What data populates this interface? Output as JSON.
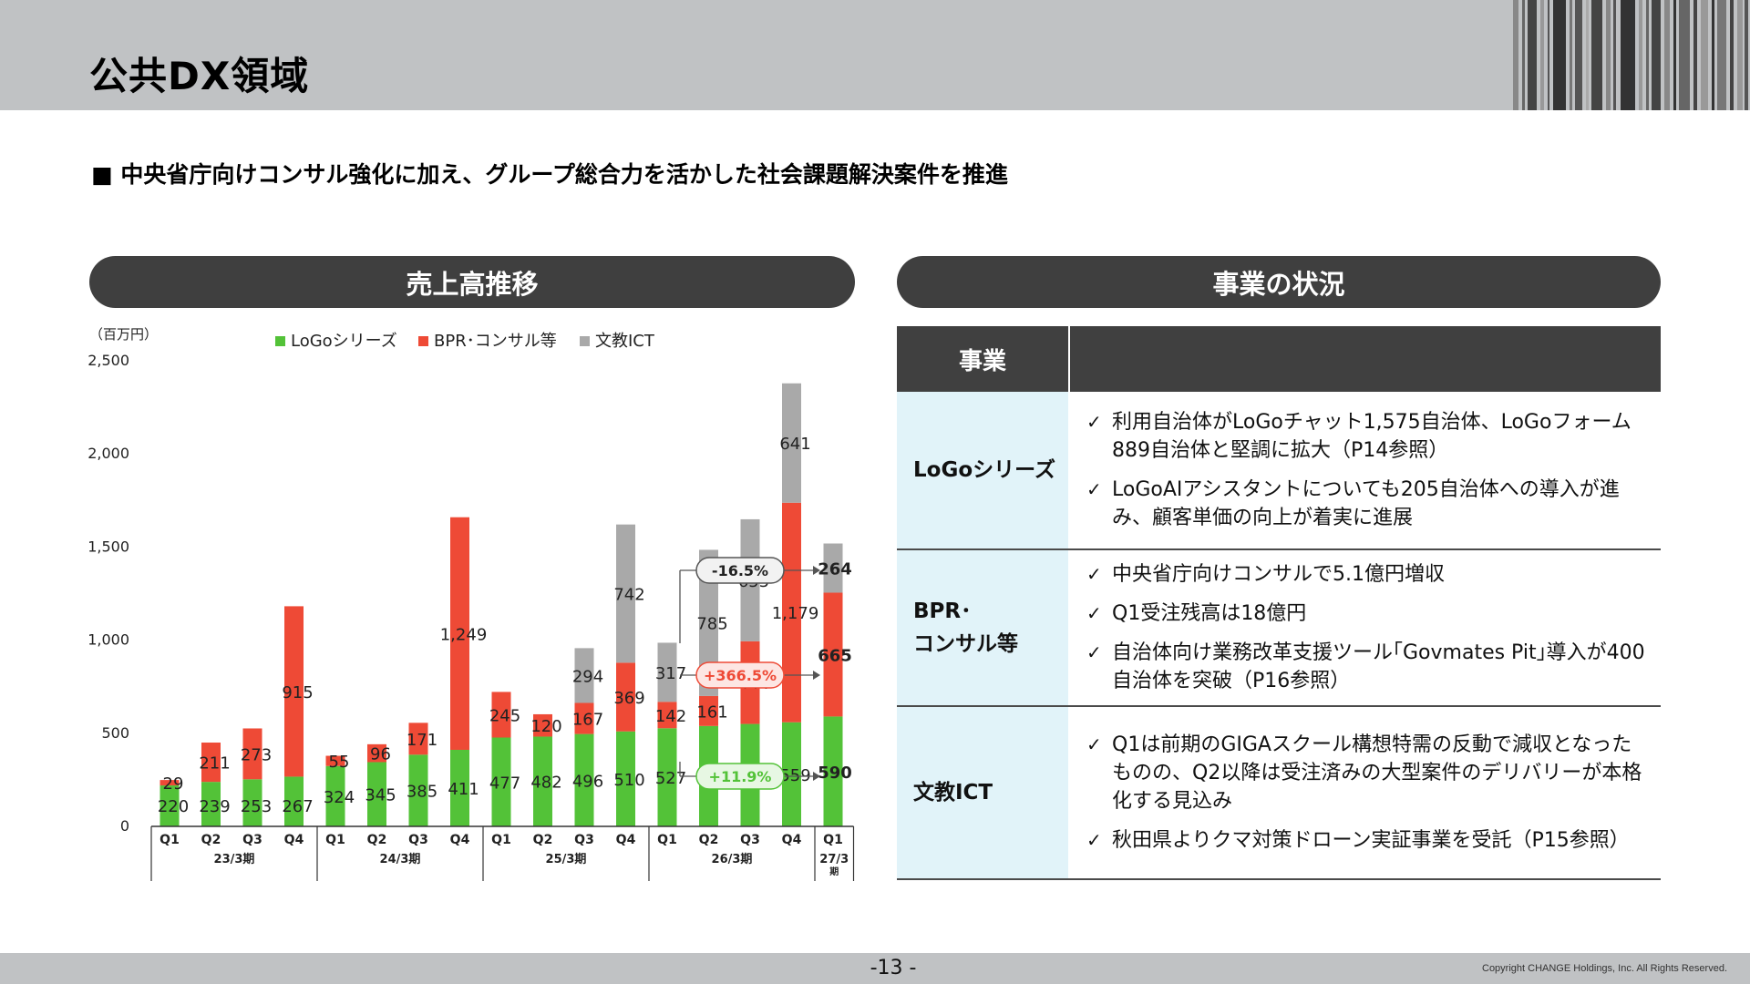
{
  "header": {
    "title": "公共DX領域"
  },
  "subtitle": "■ 中央省庁向けコンサル強化に加え、グループ総合力を活かした社会課題解決案件を推進",
  "left_section": {
    "title": "売上高推移"
  },
  "right_section": {
    "title": "事業の状況"
  },
  "colors": {
    "logo": "#53c238",
    "bpr": "#ee4a36",
    "ict": "#a9a9a9",
    "header": "#404040",
    "label_bg": "#e1f3f9"
  },
  "chart_data": {
    "type": "bar",
    "stacked": true,
    "unit": "（百万円）",
    "ylim": [
      0,
      2500
    ],
    "yticks": [
      "0",
      "500",
      "1,000",
      "1,500",
      "2,000",
      "2,500"
    ],
    "grid": false,
    "legend_position": "top",
    "categories": [
      "Q1",
      "Q2",
      "Q3",
      "Q4",
      "Q1",
      "Q2",
      "Q3",
      "Q4",
      "Q1",
      "Q2",
      "Q3",
      "Q4",
      "Q1",
      "Q2",
      "Q3",
      "Q4",
      "Q1"
    ],
    "groups": [
      {
        "label": "23/3期",
        "count": 4
      },
      {
        "label": "24/3期",
        "count": 4
      },
      {
        "label": "25/3期",
        "count": 4
      },
      {
        "label": "26/3期",
        "count": 4
      },
      {
        "label": "27/3期",
        "count": 1
      }
    ],
    "series": [
      {
        "name": "LoGoシリーズ",
        "color": "#53c238",
        "values": [
          220,
          239,
          253,
          267,
          324,
          345,
          385,
          411,
          477,
          482,
          496,
          510,
          527,
          539,
          550,
          559,
          590
        ],
        "labels": [
          "220",
          "239",
          "253",
          "267",
          "324",
          "345",
          "385",
          "411",
          "477",
          "482",
          "496",
          "510",
          "527",
          "539",
          "550",
          "559",
          "590"
        ]
      },
      {
        "name": "BPR･コンサル等",
        "color": "#ee4a36",
        "values": [
          29,
          211,
          273,
          915,
          55,
          96,
          171,
          1249,
          245,
          120,
          167,
          369,
          142,
          161,
          444,
          1179,
          665
        ],
        "labels": [
          "29",
          "211",
          "273",
          "915",
          "55",
          "96",
          "171",
          "1,249",
          "245",
          "120",
          "167",
          "369",
          "142",
          "161",
          "444",
          "1,179",
          "665"
        ]
      },
      {
        "name": "文教ICT",
        "color": "#a9a9a9",
        "values": [
          0,
          0,
          0,
          0,
          0,
          0,
          0,
          0,
          0,
          0,
          294,
          742,
          317,
          785,
          655,
          641,
          264
        ],
        "labels": [
          "",
          "",
          "",
          "",
          "",
          "",
          "",
          "",
          "",
          "",
          "294",
          "742",
          "317",
          "785",
          "655",
          "641",
          "264"
        ]
      }
    ],
    "annotations": [
      {
        "text": "-16.5%",
        "series": "文教ICT",
        "from": "26/3期 Q1",
        "to": "27/3期 Q1",
        "target_label": "264"
      },
      {
        "text": "+366.5%",
        "series": "BPR･コンサル等",
        "from": "26/3期 Q1",
        "to": "27/3期 Q1",
        "target_label": "665"
      },
      {
        "text": "+11.9%",
        "series": "LoGoシリーズ",
        "from": "26/3期 Q1",
        "to": "27/3期 Q1",
        "target_label": "590"
      }
    ]
  },
  "business_table": {
    "header_label": "事業",
    "rows": [
      {
        "name": "LoGoシリーズ",
        "items": [
          "利用自治体がLoGoチャット1,575自治体、LoGoフォーム889自治体と堅調に拡大（P14参照）",
          "LoGoAIアシスタントについても205自治体への導入が進み、顧客単価の向上が着実に進展"
        ]
      },
      {
        "name": "BPR･\nコンサル等",
        "items": [
          "中央省庁向けコンサルで5.1億円増収",
          "Q1受注残高は18億円",
          "自治体向け業務改革支援ツール｢Govmates Pit｣導入が400自治体を突破（P16参照）"
        ]
      },
      {
        "name": "文教ICT",
        "items": [
          "Q1は前期のGIGAスクール構想特需の反動で減収となったものの、Q2以降は受注済みの大型案件のデリバリーが本格化する見込み",
          "秋田県よりクマ対策ドローン実証事業を受託（P15参照）"
        ]
      }
    ]
  },
  "footer": {
    "page_number": "-13 -",
    "copyright": "Copyright CHANGE Holdings, Inc. All Rights Reserved."
  }
}
